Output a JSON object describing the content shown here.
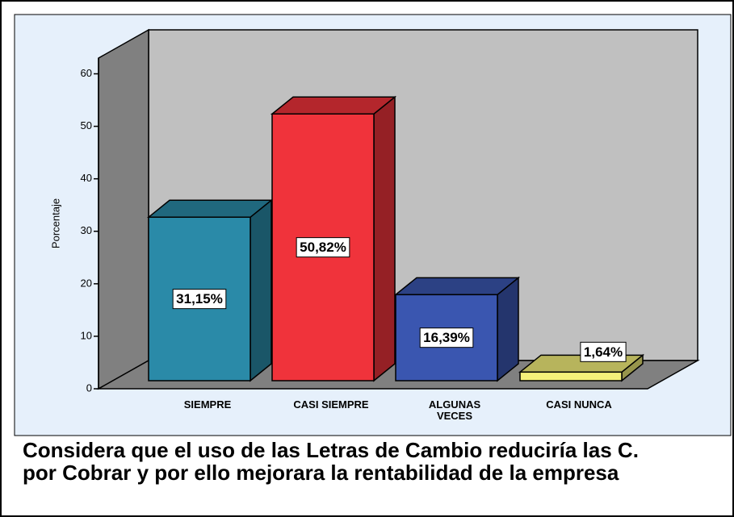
{
  "chart_data": {
    "type": "bar3d",
    "title": "Considera que el uso de las Letras de Cambio reduciría las C. por Cobrar y por ello mejorara la rentabilidad de la empresa",
    "y_label": "Porcentaje",
    "categories": [
      "SIEMPRE",
      "CASI SIEMPRE",
      "ALGUNAS VECES",
      "CASI NUNCA"
    ],
    "values": [
      31.15,
      50.82,
      16.39,
      1.64
    ],
    "value_labels": [
      "31,15%",
      "50,82%",
      "16,39%",
      "1,64%"
    ],
    "colors": [
      "#2a8aa8",
      "#f0333b",
      "#3a56b0",
      "#f4f07a"
    ],
    "ylim": [
      0,
      63
    ],
    "yticks": [
      0,
      10,
      20,
      30,
      40,
      50,
      60
    ]
  }
}
